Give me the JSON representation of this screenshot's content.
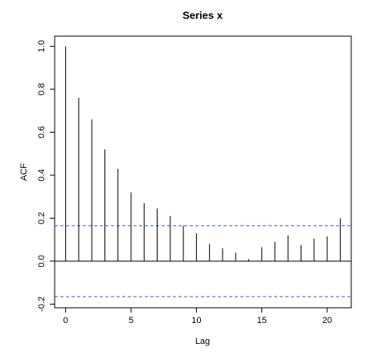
{
  "chart_data": {
    "type": "acf",
    "title": "Series  x",
    "x_label": "Lag",
    "y_label": "ACF",
    "x": [
      0,
      1,
      2,
      3,
      4,
      5,
      6,
      7,
      8,
      9,
      10,
      11,
      12,
      13,
      14,
      15,
      16,
      17,
      18,
      19,
      20,
      21
    ],
    "values": [
      1.0,
      0.76,
      0.66,
      0.52,
      0.43,
      0.32,
      0.27,
      0.245,
      0.21,
      0.165,
      0.13,
      0.08,
      0.06,
      0.04,
      0.01,
      0.065,
      0.09,
      0.12,
      0.075,
      0.105,
      0.115,
      0.2
    ],
    "color": "#000000",
    "xlim": [
      -0.84,
      21.84
    ],
    "ylim": [
      -0.217,
      1.047
    ],
    "xticks": [
      0,
      5,
      10,
      15,
      20
    ],
    "yticks": [
      -0.2,
      {
        "value": 0,
        "label": "0.0"
      },
      0.2,
      0.4,
      0.6,
      0.8,
      {
        "value": 1,
        "label": "1.0"
      }
    ],
    "confidence_lines": [
      0.165,
      -0.165
    ],
    "confidence_color": "#3b5bdb"
  }
}
